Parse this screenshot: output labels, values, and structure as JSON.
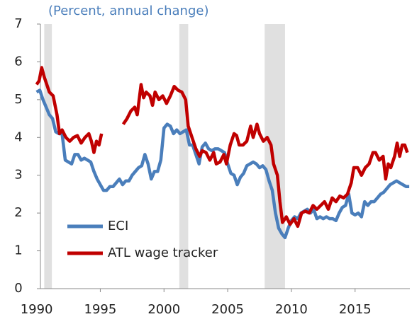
{
  "chart_data": {
    "type": "line",
    "title": "(Percent, annual change)",
    "xlim": [
      1990.3,
      2019.3
    ],
    "xticks": [
      1990,
      1995,
      2000,
      2005,
      2010,
      2015
    ],
    "ylim": [
      0,
      7
    ],
    "yticks": [
      0,
      1,
      2,
      3,
      4,
      5,
      6,
      7
    ],
    "shaded_ranges": [
      [
        1990.6,
        1991.2
      ],
      [
        2001.2,
        2001.9
      ],
      [
        2007.9,
        2009.5
      ]
    ],
    "shade_color": "#e0e0e0",
    "series": [
      {
        "name": "ECI",
        "color": "#4a7ebb",
        "x": [
          1990.0,
          1990.25,
          1990.5,
          1990.75,
          1991.0,
          1991.25,
          1991.5,
          1991.75,
          1992.0,
          1992.25,
          1992.5,
          1992.75,
          1993.0,
          1993.25,
          1993.5,
          1993.75,
          1994.0,
          1994.25,
          1994.5,
          1994.75,
          1995.0,
          1995.25,
          1995.5,
          1995.75,
          1996.0,
          1996.25,
          1996.5,
          1996.75,
          1997.0,
          1997.25,
          1997.5,
          1997.75,
          1998.0,
          1998.25,
          1998.5,
          1998.75,
          1999.0,
          1999.25,
          1999.5,
          1999.75,
          2000.0,
          2000.25,
          2000.5,
          2000.75,
          2001.0,
          2001.25,
          2001.5,
          2001.75,
          2002.0,
          2002.25,
          2002.5,
          2002.75,
          2003.0,
          2003.25,
          2003.5,
          2003.75,
          2004.0,
          2004.25,
          2004.5,
          2004.75,
          2005.0,
          2005.25,
          2005.5,
          2005.75,
          2006.0,
          2006.25,
          2006.5,
          2006.75,
          2007.0,
          2007.25,
          2007.5,
          2007.75,
          2008.0,
          2008.25,
          2008.5,
          2008.75,
          2009.0,
          2009.25,
          2009.5,
          2009.75,
          2010.0,
          2010.25,
          2010.5,
          2010.75,
          2011.0,
          2011.25,
          2011.5,
          2011.75,
          2012.0,
          2012.25,
          2012.5,
          2012.75,
          2013.0,
          2013.25,
          2013.5,
          2013.75,
          2014.0,
          2014.25,
          2014.5,
          2014.75,
          2015.0,
          2015.25,
          2015.5,
          2015.75,
          2016.0,
          2016.25,
          2016.5,
          2016.75,
          2017.0,
          2017.25,
          2017.5,
          2017.75,
          2018.0,
          2018.25,
          2018.5,
          2018.75,
          2019.0,
          2019.25
        ],
        "values": [
          5.2,
          5.25,
          5.0,
          4.8,
          4.6,
          4.5,
          4.15,
          4.1,
          4.1,
          3.4,
          3.35,
          3.3,
          3.55,
          3.55,
          3.4,
          3.45,
          3.4,
          3.35,
          3.1,
          2.9,
          2.75,
          2.6,
          2.6,
          2.7,
          2.7,
          2.8,
          2.9,
          2.75,
          2.85,
          2.85,
          3.0,
          3.1,
          3.2,
          3.25,
          3.55,
          3.3,
          2.9,
          3.1,
          3.1,
          3.4,
          4.25,
          4.35,
          4.3,
          4.1,
          4.2,
          4.1,
          4.15,
          4.2,
          3.8,
          3.8,
          3.55,
          3.3,
          3.75,
          3.85,
          3.7,
          3.65,
          3.7,
          3.7,
          3.65,
          3.6,
          3.3,
          3.05,
          3.0,
          2.75,
          2.95,
          3.05,
          3.25,
          3.3,
          3.35,
          3.3,
          3.2,
          3.25,
          3.15,
          2.85,
          2.6,
          2.0,
          1.6,
          1.45,
          1.35,
          1.6,
          1.8,
          1.9,
          1.85,
          2.0,
          2.05,
          2.1,
          2.0,
          2.1,
          1.85,
          1.9,
          1.85,
          1.9,
          1.85,
          1.85,
          1.8,
          2.0,
          2.15,
          2.2,
          2.5,
          2.0,
          1.95,
          2.0,
          1.9,
          2.3,
          2.2,
          2.3,
          2.3,
          2.4,
          2.5,
          2.55,
          2.65,
          2.75,
          2.8,
          2.85,
          2.8,
          2.75,
          2.7,
          2.7
        ]
      },
      {
        "name": "ATL wage tracker",
        "color": "#c00000",
        "x": [
          1990.0,
          1990.2,
          1990.4,
          1990.6,
          1990.8,
          1991.0,
          1991.3,
          1991.6,
          1991.8,
          1992.0,
          1992.3,
          1992.6,
          1992.9,
          1993.2,
          1993.5,
          1993.8,
          1994.1,
          1994.3,
          1994.5,
          1994.7,
          1994.9,
          1995.1,
          1996.0,
          1996.8,
          1997.1,
          1997.4,
          1997.7,
          1997.9,
          1998.2,
          1998.4,
          1998.6,
          1998.9,
          1999.1,
          1999.3,
          1999.6,
          1999.9,
          2000.2,
          2000.5,
          2000.8,
          2001.1,
          2001.4,
          2001.7,
          2001.9,
          2002.2,
          2002.5,
          2002.8,
          2003.0,
          2003.3,
          2003.6,
          2003.9,
          2004.1,
          2004.4,
          2004.7,
          2004.9,
          2005.2,
          2005.5,
          2005.7,
          2005.9,
          2006.2,
          2006.5,
          2006.8,
          2007.0,
          2007.3,
          2007.5,
          2007.8,
          2008.1,
          2008.4,
          2008.6,
          2008.9,
          2009.1,
          2009.3,
          2009.6,
          2009.9,
          2010.2,
          2010.5,
          2010.8,
          2011.1,
          2011.4,
          2011.7,
          2012.0,
          2012.3,
          2012.6,
          2012.9,
          2013.2,
          2013.5,
          2013.8,
          2014.1,
          2014.4,
          2014.7,
          2014.9,
          2015.2,
          2015.5,
          2015.8,
          2016.1,
          2016.4,
          2016.6,
          2016.9,
          2017.2,
          2017.4,
          2017.6,
          2017.8,
          2018.1,
          2018.3,
          2018.5,
          2018.7,
          2018.9,
          2019.1
        ],
        "values": [
          5.4,
          5.5,
          5.85,
          5.6,
          5.4,
          5.2,
          5.1,
          4.6,
          4.1,
          4.2,
          4.0,
          3.9,
          4.0,
          4.05,
          3.85,
          4.0,
          4.1,
          3.9,
          3.6,
          3.9,
          3.8,
          4.1,
          null,
          4.35,
          4.5,
          4.7,
          4.8,
          4.6,
          5.4,
          5.05,
          5.2,
          5.1,
          4.85,
          5.2,
          5.0,
          5.1,
          4.9,
          5.1,
          5.35,
          5.25,
          5.2,
          5.0,
          4.3,
          4.0,
          3.7,
          3.5,
          3.65,
          3.6,
          3.4,
          3.6,
          3.3,
          3.35,
          3.55,
          3.3,
          3.8,
          4.1,
          4.05,
          3.8,
          3.8,
          3.9,
          4.3,
          4.0,
          4.35,
          4.1,
          3.9,
          4.0,
          3.8,
          3.3,
          3.0,
          2.3,
          1.75,
          1.9,
          1.7,
          1.85,
          1.65,
          2.0,
          2.05,
          2.0,
          2.2,
          2.1,
          2.2,
          2.3,
          2.1,
          2.4,
          2.3,
          2.45,
          2.4,
          2.5,
          2.8,
          3.2,
          3.2,
          3.0,
          3.2,
          3.3,
          3.6,
          3.6,
          3.4,
          3.5,
          2.9,
          3.3,
          3.2,
          3.5,
          3.85,
          3.5,
          3.8,
          3.8,
          3.6
        ]
      }
    ]
  }
}
